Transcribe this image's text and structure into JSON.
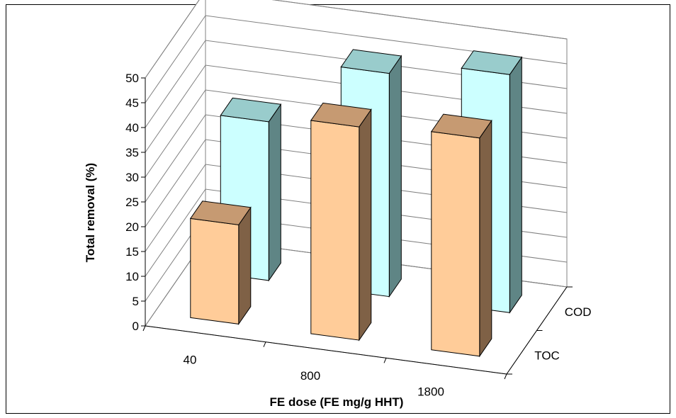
{
  "chart_data": {
    "type": "bar",
    "subtype": "3d-clustered",
    "title": "",
    "xlabel": "FE dose  (FE mg/g HHT)",
    "ylabel": "Total removal (%)",
    "categories": [
      "40",
      "800",
      "1800"
    ],
    "series": [
      {
        "name": "TOC",
        "values": [
          20,
          43,
          44
        ]
      },
      {
        "name": "COD",
        "values": [
          32,
          45,
          48
        ]
      }
    ],
    "ylim": [
      0,
      50
    ],
    "yticks": [
      "0",
      "5",
      "10",
      "15",
      "20",
      "25",
      "30",
      "35",
      "40",
      "45",
      "50"
    ],
    "grid": true,
    "legend": "none",
    "colors": {
      "TOC": {
        "front": "#FFCC99",
        "top": "#C69A72",
        "side": "#7F6146"
      },
      "COD": {
        "front": "#CCFFFF",
        "top": "#99CCCC",
        "side": "#5F8585"
      },
      "walls": "#ffffff",
      "gridlines": "#808080"
    }
  }
}
